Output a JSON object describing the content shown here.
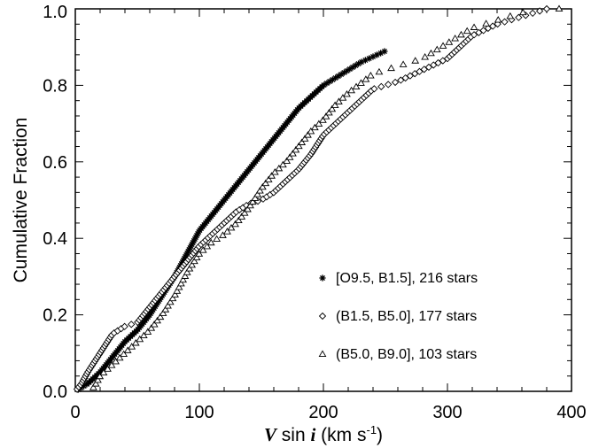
{
  "chart_data": {
    "type": "scatter",
    "xlabel": {
      "v": "V",
      "sin": " sin ",
      "i": "i",
      "unit": " (km s",
      "exp": "-1",
      "close": ")"
    },
    "ylabel": "Cumulative Fraction",
    "xlim": [
      0,
      400
    ],
    "ylim": [
      0,
      1.0
    ],
    "xticks": [
      0,
      100,
      200,
      300,
      400
    ],
    "yticks": [
      0.0,
      0.2,
      0.4,
      0.6,
      0.8,
      1.0
    ],
    "xtick_labels": [
      "0",
      "100",
      "200",
      "300",
      "400"
    ],
    "ytick_labels": [
      "0.0",
      "0.2",
      "0.4",
      "0.6",
      "0.8",
      "1.0"
    ],
    "grid": false,
    "legend_position": "lower-right",
    "series": [
      {
        "name": "[O9.5, B1.5], 216 stars",
        "marker": "asterisk",
        "n": 216,
        "curve": [
          [
            0,
            0.0
          ],
          [
            10,
            0.02
          ],
          [
            20,
            0.05
          ],
          [
            30,
            0.09
          ],
          [
            40,
            0.13
          ],
          [
            50,
            0.16
          ],
          [
            60,
            0.2
          ],
          [
            70,
            0.25
          ],
          [
            80,
            0.3
          ],
          [
            90,
            0.36
          ],
          [
            100,
            0.42
          ],
          [
            110,
            0.46
          ],
          [
            120,
            0.5
          ],
          [
            130,
            0.54
          ],
          [
            140,
            0.58
          ],
          [
            150,
            0.62
          ],
          [
            160,
            0.66
          ],
          [
            170,
            0.7
          ],
          [
            180,
            0.74
          ],
          [
            190,
            0.77
          ],
          [
            200,
            0.8
          ],
          [
            210,
            0.82
          ],
          [
            220,
            0.84
          ],
          [
            230,
            0.86
          ],
          [
            240,
            0.875
          ],
          [
            250,
            0.89
          ]
        ]
      },
      {
        "name": "(B1.5, B5.0], 177 stars",
        "marker": "diamond",
        "n": 177,
        "curve": [
          [
            0,
            0.0
          ],
          [
            5,
            0.02
          ],
          [
            10,
            0.05
          ],
          [
            20,
            0.1
          ],
          [
            30,
            0.15
          ],
          [
            40,
            0.17
          ],
          [
            50,
            0.18
          ],
          [
            60,
            0.22
          ],
          [
            70,
            0.26
          ],
          [
            80,
            0.3
          ],
          [
            90,
            0.34
          ],
          [
            100,
            0.38
          ],
          [
            110,
            0.41
          ],
          [
            120,
            0.44
          ],
          [
            130,
            0.47
          ],
          [
            140,
            0.49
          ],
          [
            150,
            0.5
          ],
          [
            160,
            0.52
          ],
          [
            170,
            0.55
          ],
          [
            180,
            0.58
          ],
          [
            190,
            0.62
          ],
          [
            200,
            0.67
          ],
          [
            210,
            0.7
          ],
          [
            220,
            0.73
          ],
          [
            230,
            0.76
          ],
          [
            240,
            0.79
          ],
          [
            260,
            0.81
          ],
          [
            280,
            0.84
          ],
          [
            300,
            0.87
          ],
          [
            320,
            0.93
          ],
          [
            340,
            0.96
          ],
          [
            360,
            0.98
          ],
          [
            380,
            1.0
          ]
        ]
      },
      {
        "name": "(B5.0, B9.0], 103 stars",
        "marker": "triangle",
        "n": 103,
        "curve": [
          [
            0,
            0.0
          ],
          [
            15,
            0.01
          ],
          [
            20,
            0.04
          ],
          [
            30,
            0.07
          ],
          [
            40,
            0.1
          ],
          [
            50,
            0.13
          ],
          [
            60,
            0.16
          ],
          [
            70,
            0.2
          ],
          [
            80,
            0.25
          ],
          [
            90,
            0.31
          ],
          [
            100,
            0.36
          ],
          [
            110,
            0.39
          ],
          [
            120,
            0.41
          ],
          [
            130,
            0.44
          ],
          [
            140,
            0.48
          ],
          [
            150,
            0.53
          ],
          [
            160,
            0.57
          ],
          [
            170,
            0.6
          ],
          [
            180,
            0.64
          ],
          [
            190,
            0.68
          ],
          [
            200,
            0.71
          ],
          [
            210,
            0.75
          ],
          [
            220,
            0.78
          ],
          [
            240,
            0.83
          ],
          [
            260,
            0.85
          ],
          [
            280,
            0.87
          ],
          [
            300,
            0.91
          ],
          [
            320,
            0.95
          ],
          [
            340,
            0.97
          ],
          [
            360,
            0.99
          ],
          [
            390,
            1.0
          ]
        ]
      }
    ]
  }
}
